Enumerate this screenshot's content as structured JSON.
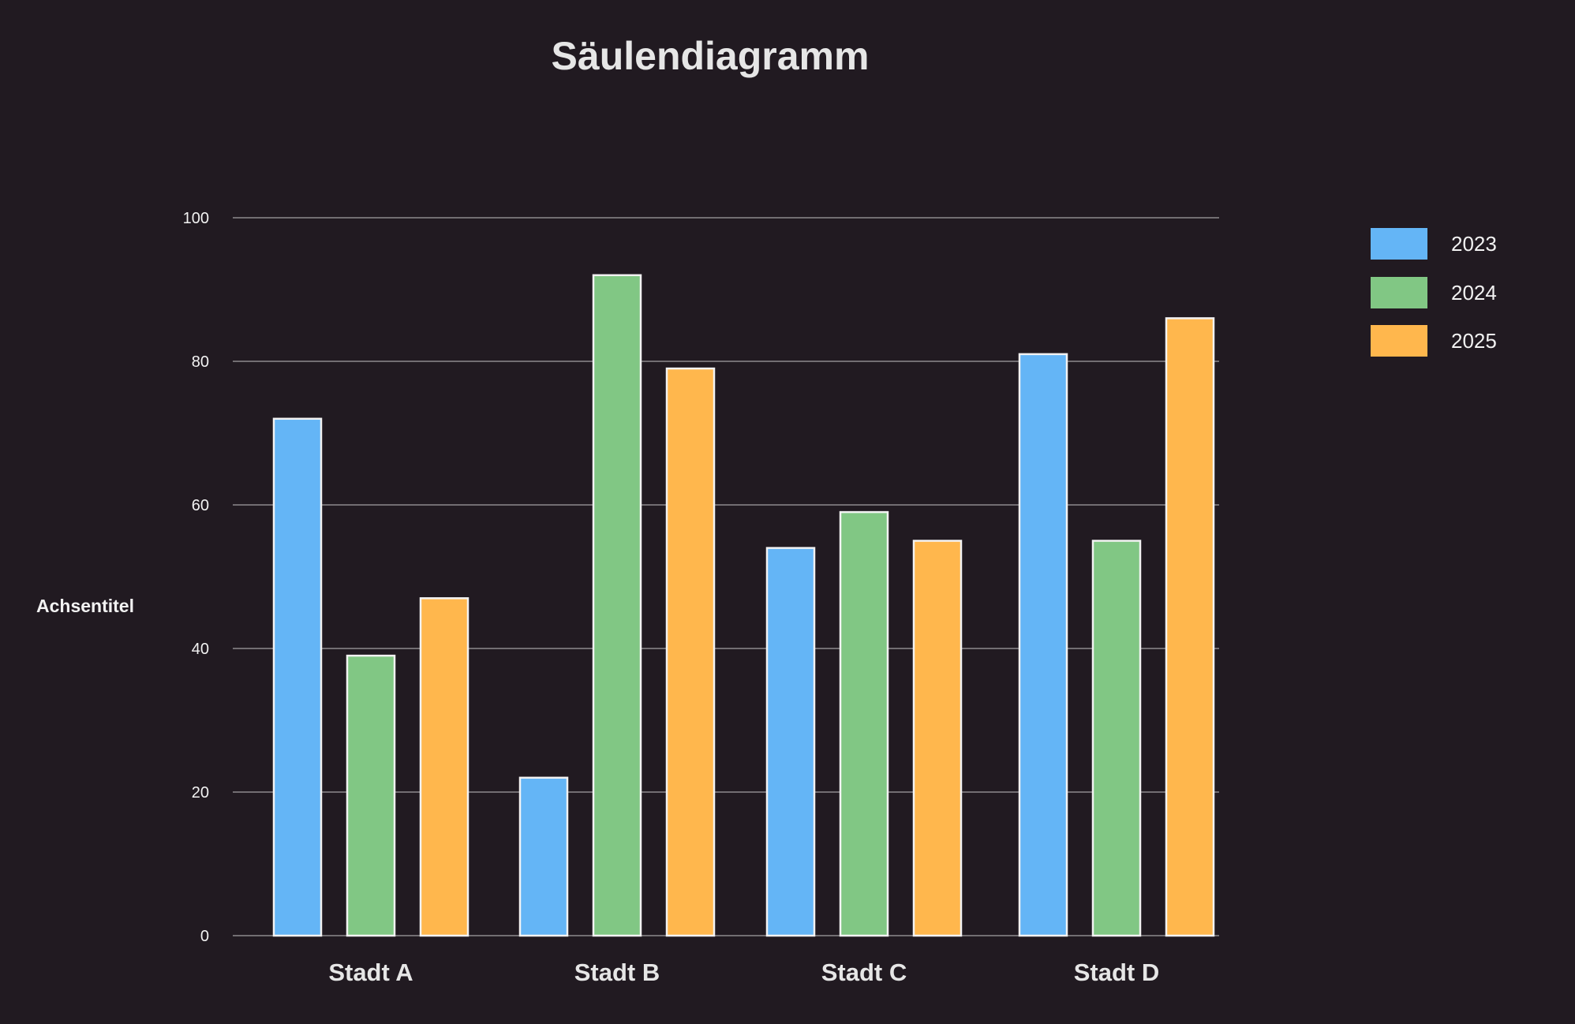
{
  "chart_data": {
    "type": "bar",
    "title": "Säulendiagramm",
    "xlabel": "",
    "ylabel": "Achsentitel",
    "categories": [
      "Stadt A",
      "Stadt B",
      "Stadt C",
      "Stadt D"
    ],
    "series": [
      {
        "name": "2023",
        "color": "#64b5f6",
        "values": [
          72,
          22,
          54,
          81
        ]
      },
      {
        "name": "2024",
        "color": "#81c784",
        "values": [
          39,
          92,
          59,
          55
        ]
      },
      {
        "name": "2025",
        "color": "#ffb74d",
        "values": [
          47,
          79,
          55,
          86
        ]
      }
    ],
    "yticks": [
      0,
      20,
      40,
      60,
      80,
      100
    ],
    "ylim": [
      0,
      100
    ],
    "grid": true,
    "legend_position": "top-right"
  }
}
